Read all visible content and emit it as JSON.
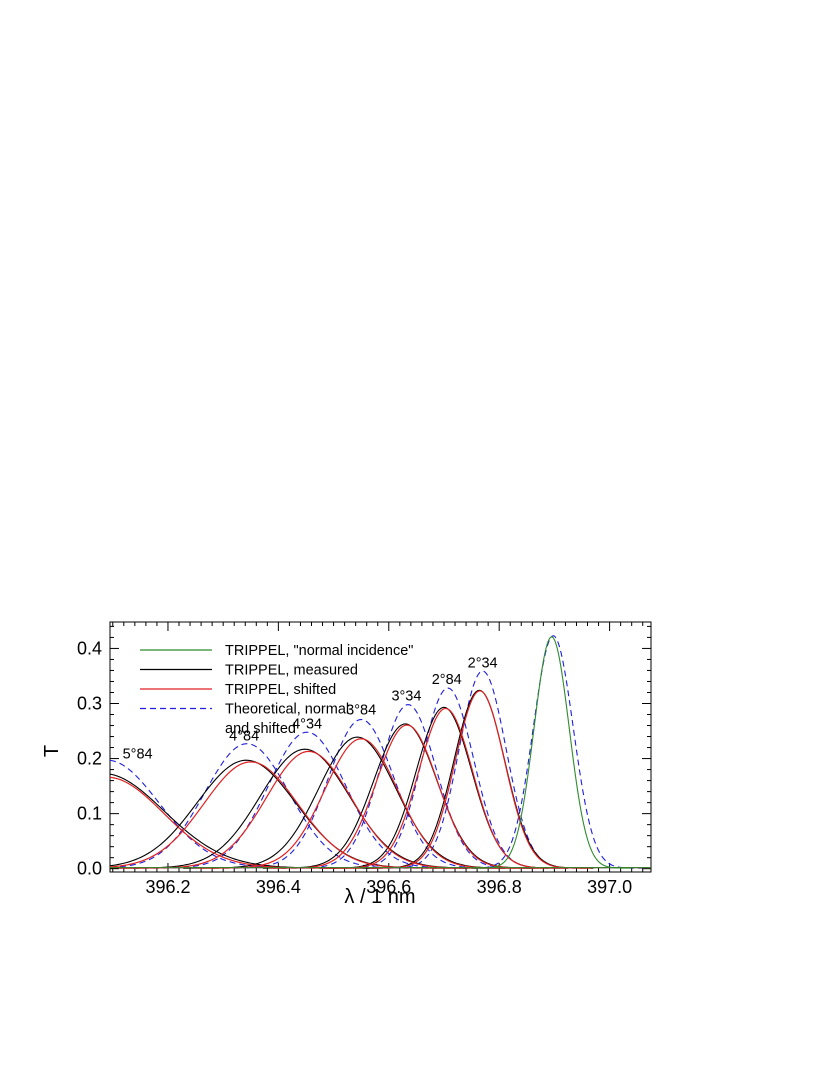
{
  "chart_data": {
    "type": "line",
    "title": "",
    "xlabel": "λ / 1 nm",
    "ylabel": "T",
    "xlim": [
      396.095,
      397.075
    ],
    "ylim": [
      -0.006,
      0.448
    ],
    "xticks": [
      396.2,
      396.4,
      396.6,
      396.8,
      397.0
    ],
    "xtick_labels": [
      "396.2",
      "396.4",
      "396.6",
      "396.8",
      "397.0"
    ],
    "xminor_step": 0.02,
    "yticks": [
      0.0,
      0.1,
      0.2,
      0.3,
      0.4
    ],
    "ytick_labels": [
      "0.0",
      "0.1",
      "0.2",
      "0.3",
      "0.4"
    ],
    "yminor_step": 0.02,
    "grid": false,
    "legend_position": "top-left",
    "colors": {
      "normal": "#2e8b2e",
      "measured": "#000000",
      "shifted": "#e02020",
      "theoretical": "#1f1fdd"
    },
    "legend": [
      {
        "label": "TRIPPEL, \"normal incidence\"",
        "style": "normal"
      },
      {
        "label": "TRIPPEL, measured",
        "style": "measured"
      },
      {
        "label": "TRIPPEL, shifted",
        "style": "shifted"
      },
      {
        "label": "Theoretical, normal",
        "style": "theoretical"
      },
      {
        "label": "and shifted",
        "style": "none"
      }
    ],
    "annotations": [
      {
        "text": "2°34",
        "x": 396.77,
        "y": 0.365
      },
      {
        "text": "2°84",
        "x": 396.705,
        "y": 0.335
      },
      {
        "text": "3°34",
        "x": 396.632,
        "y": 0.305
      },
      {
        "text": "3°84",
        "x": 396.55,
        "y": 0.28
      },
      {
        "text": "4°34",
        "x": 396.452,
        "y": 0.255
      },
      {
        "text": "4°84",
        "x": 396.338,
        "y": 0.233
      },
      {
        "text": "5°84",
        "x": 396.145,
        "y": 0.2
      }
    ],
    "series": [
      {
        "name": "TRIPPEL, \"normal incidence\"",
        "style": "normal",
        "peaks": [
          {
            "center": 396.895,
            "amplitude": 0.42,
            "fwhm": 0.075
          }
        ]
      },
      {
        "name": "TRIPPEL, shifted",
        "style": "shifted",
        "peaks": [
          {
            "center": 396.765,
            "amplitude": 0.322,
            "fwhm": 0.105
          },
          {
            "center": 396.703,
            "amplitude": 0.29,
            "fwhm": 0.115
          },
          {
            "center": 396.633,
            "amplitude": 0.26,
            "fwhm": 0.13
          },
          {
            "center": 396.55,
            "amplitude": 0.235,
            "fwhm": 0.155
          },
          {
            "center": 396.455,
            "amplitude": 0.212,
            "fwhm": 0.18
          },
          {
            "center": 396.35,
            "amplitude": 0.193,
            "fwhm": 0.2
          },
          {
            "center": 396.09,
            "amplitude": 0.165,
            "fwhm": 0.24
          }
        ]
      },
      {
        "name": "TRIPPEL, measured",
        "style": "measured",
        "peaks": [
          {
            "center": 396.764,
            "amplitude": 0.323,
            "fwhm": 0.108
          },
          {
            "center": 396.7,
            "amplitude": 0.292,
            "fwhm": 0.118
          },
          {
            "center": 396.63,
            "amplitude": 0.262,
            "fwhm": 0.135
          },
          {
            "center": 396.543,
            "amplitude": 0.238,
            "fwhm": 0.165
          },
          {
            "center": 396.448,
            "amplitude": 0.216,
            "fwhm": 0.19
          },
          {
            "center": 396.342,
            "amplitude": 0.196,
            "fwhm": 0.21
          },
          {
            "center": 396.082,
            "amplitude": 0.172,
            "fwhm": 0.26
          }
        ]
      },
      {
        "name": "Theoretical, normal and shifted",
        "style": "theoretical",
        "peaks": [
          {
            "center": 396.898,
            "amplitude": 0.422,
            "fwhm": 0.085
          },
          {
            "center": 396.77,
            "amplitude": 0.358,
            "fwhm": 0.1
          },
          {
            "center": 396.707,
            "amplitude": 0.327,
            "fwhm": 0.11
          },
          {
            "center": 396.635,
            "amplitude": 0.297,
            "fwhm": 0.12
          },
          {
            "center": 396.55,
            "amplitude": 0.27,
            "fwhm": 0.14
          },
          {
            "center": 396.452,
            "amplitude": 0.247,
            "fwhm": 0.165
          },
          {
            "center": 396.343,
            "amplitude": 0.226,
            "fwhm": 0.18
          },
          {
            "center": 396.09,
            "amplitude": 0.196,
            "fwhm": 0.22
          }
        ]
      }
    ]
  }
}
